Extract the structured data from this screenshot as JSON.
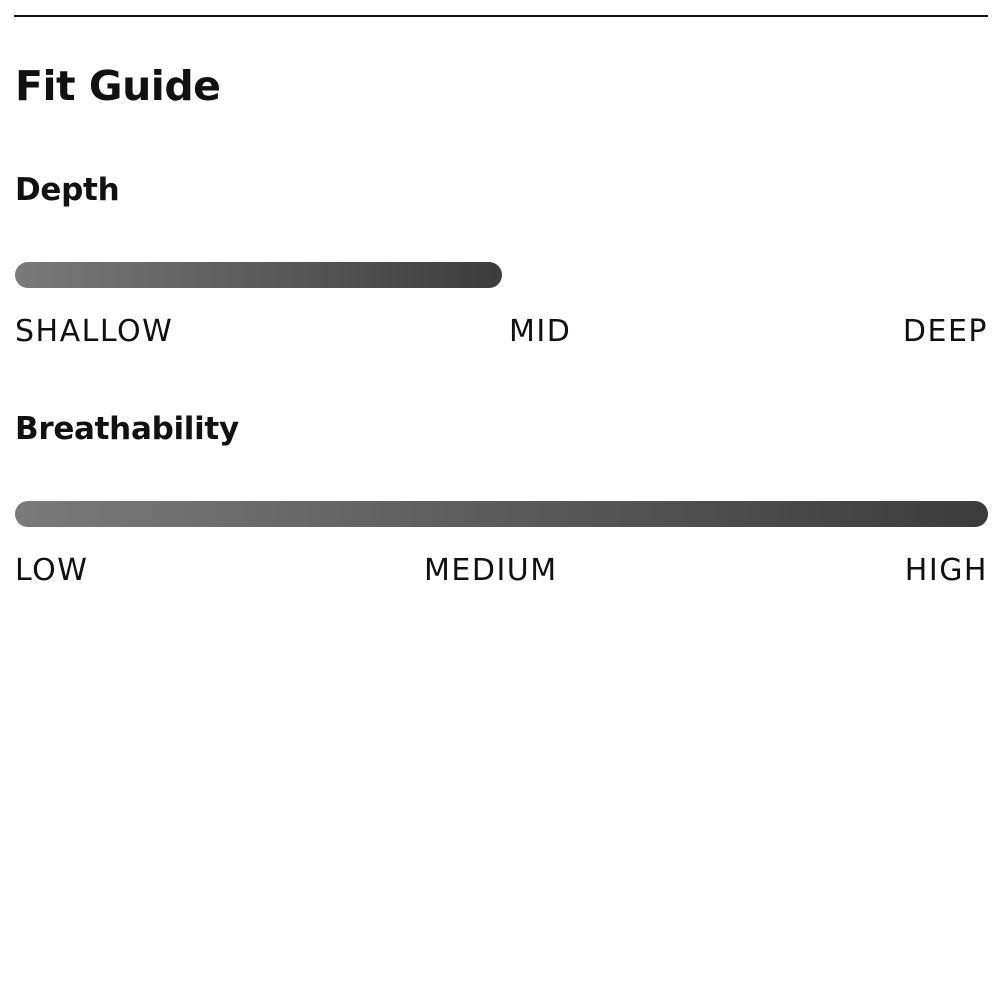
{
  "title": "Fit Guide",
  "scales": [
    {
      "name": "Depth",
      "level_percent": 50,
      "labels": [
        "SHALLOW",
        "MID",
        "DEEP"
      ]
    },
    {
      "name": "Breathability",
      "level_percent": 100,
      "labels": [
        "LOW",
        "MEDIUM",
        "HIGH"
      ]
    }
  ],
  "colors": {
    "bar_start": "#7a7a7a",
    "bar_end": "#3c3c3c",
    "text": "#111111"
  }
}
